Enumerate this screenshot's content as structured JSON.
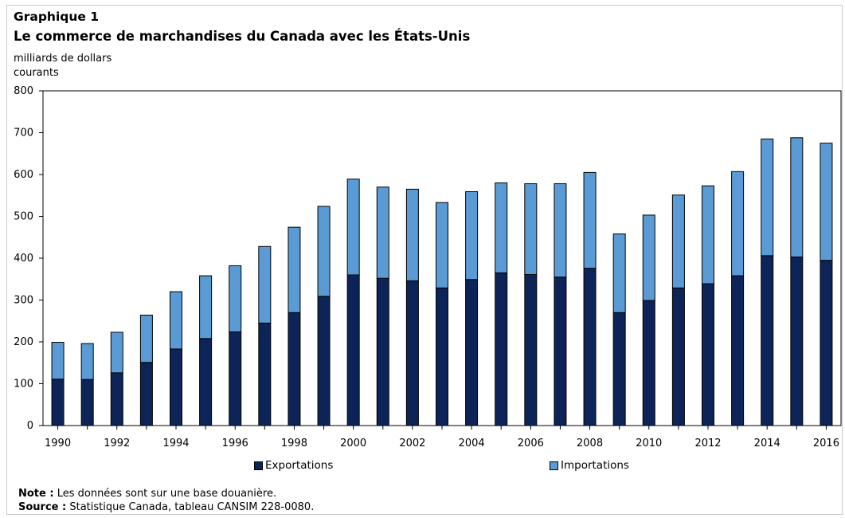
{
  "header": {
    "figure_label": "Graphique  1",
    "title": "Le commerce de marchandises du Canada avec les États-Unis",
    "unit_line1": "milliards de dollars",
    "unit_line2": "courants"
  },
  "colors": {
    "exports": "#0d2459",
    "imports": "#5b9bd5"
  },
  "legend": {
    "exports": "Exportations",
    "imports": "Importations"
  },
  "footer": {
    "note_label": "Note :",
    "note_text": " Les données sont sur une base douanière.",
    "source_label": "Source :",
    "source_text": " Statistique Canada, tableau CANSIM 228-0080."
  },
  "chart_data": {
    "type": "bar",
    "stacked": true,
    "title": "Le commerce de marchandises du Canada avec les États-Unis",
    "ylabel": "milliards de dollars courants",
    "ylim": [
      0,
      800
    ],
    "yticks": [
      0,
      100,
      200,
      300,
      400,
      500,
      600,
      700,
      800
    ],
    "categories": [
      "1990",
      "1991",
      "1992",
      "1993",
      "1994",
      "1995",
      "1996",
      "1997",
      "1998",
      "1999",
      "2000",
      "2001",
      "2002",
      "2003",
      "2004",
      "2005",
      "2006",
      "2007",
      "2008",
      "2009",
      "2010",
      "2011",
      "2012",
      "2013",
      "2014",
      "2015",
      "2016"
    ],
    "xtick_labels": [
      "1990",
      "",
      "1992",
      "",
      "1994",
      "",
      "1996",
      "",
      "1998",
      "",
      "2000",
      "",
      "2002",
      "",
      "2004",
      "",
      "2006",
      "",
      "2008",
      "",
      "2010",
      "",
      "2012",
      "",
      "2014",
      "",
      "2016"
    ],
    "series": [
      {
        "name": "Exportations",
        "values": [
          111,
          110,
          126,
          151,
          183,
          208,
          224,
          245,
          270,
          309,
          360,
          352,
          346,
          329,
          349,
          365,
          361,
          355,
          376,
          270,
          299,
          329,
          339,
          358,
          406,
          403,
          395
        ]
      },
      {
        "name": "Importations",
        "values": [
          88,
          86,
          97,
          113,
          137,
          150,
          158,
          183,
          204,
          215,
          229,
          218,
          219,
          204,
          210,
          215,
          217,
          223,
          229,
          188,
          204,
          222,
          234,
          249,
          279,
          285,
          280
        ]
      }
    ],
    "legend_position": "bottom",
    "grid": false
  }
}
